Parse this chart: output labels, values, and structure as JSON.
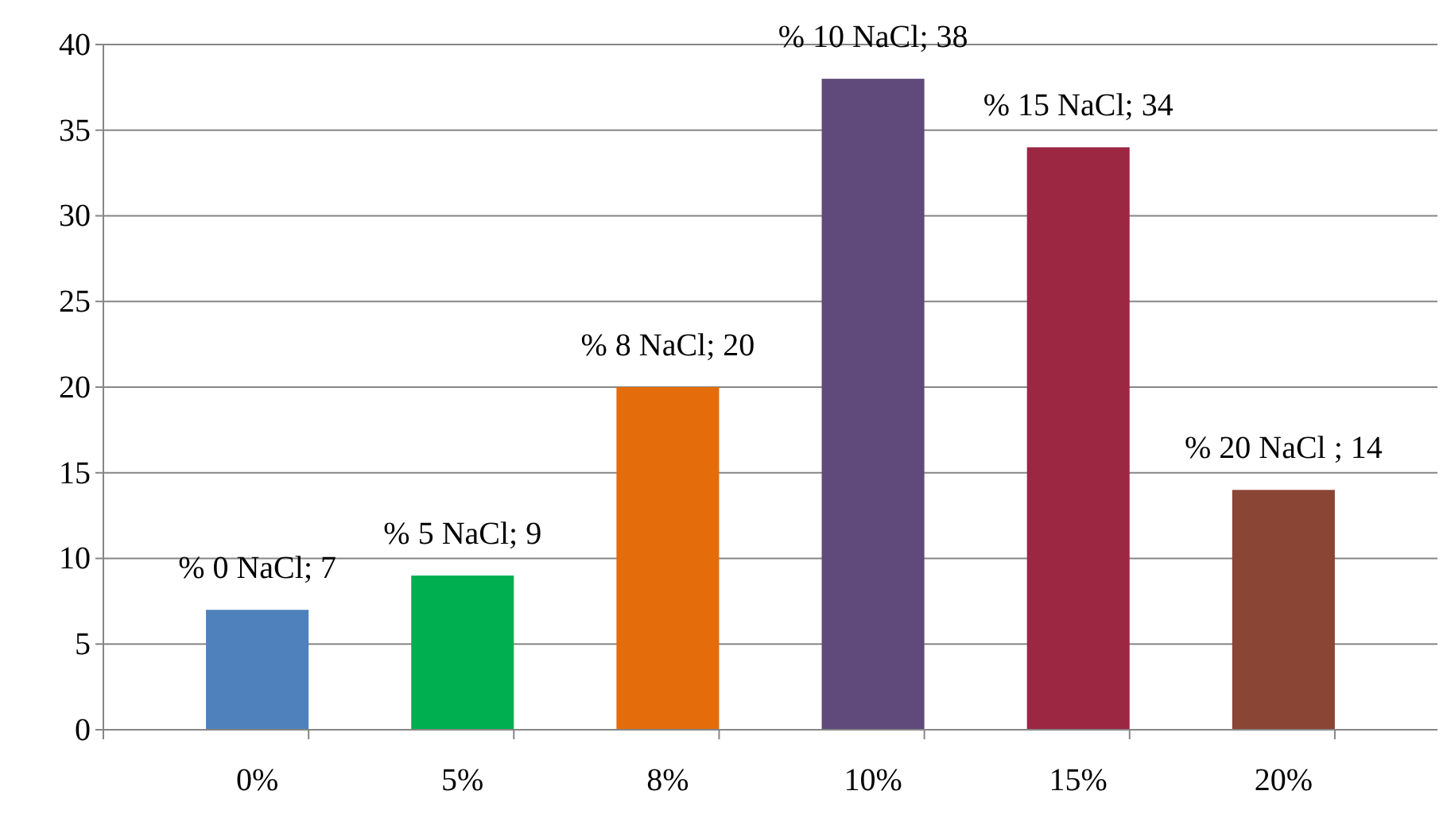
{
  "chart_data": {
    "type": "bar",
    "categories": [
      "0%",
      "5%",
      "8%",
      "10%",
      "15%",
      "20%"
    ],
    "values": [
      7,
      9,
      20,
      38,
      34,
      14
    ],
    "colors": [
      "#4f81bd",
      "#00b050",
      "#e46c0a",
      "#604a7b",
      "#9b2743",
      "#8b4535"
    ],
    "value_labels": [
      "% 0 NaCl; 7",
      "% 5 NaCl; 9",
      "% 8 NaCl; 20",
      "% 10 NaCl; 38",
      "% 15 NaCl; 34",
      "% 20 NaCl ; 14"
    ],
    "ylim": [
      0,
      40
    ],
    "yticks": [
      0,
      5,
      10,
      15,
      20,
      25,
      30,
      35,
      40
    ],
    "grid": "y"
  }
}
